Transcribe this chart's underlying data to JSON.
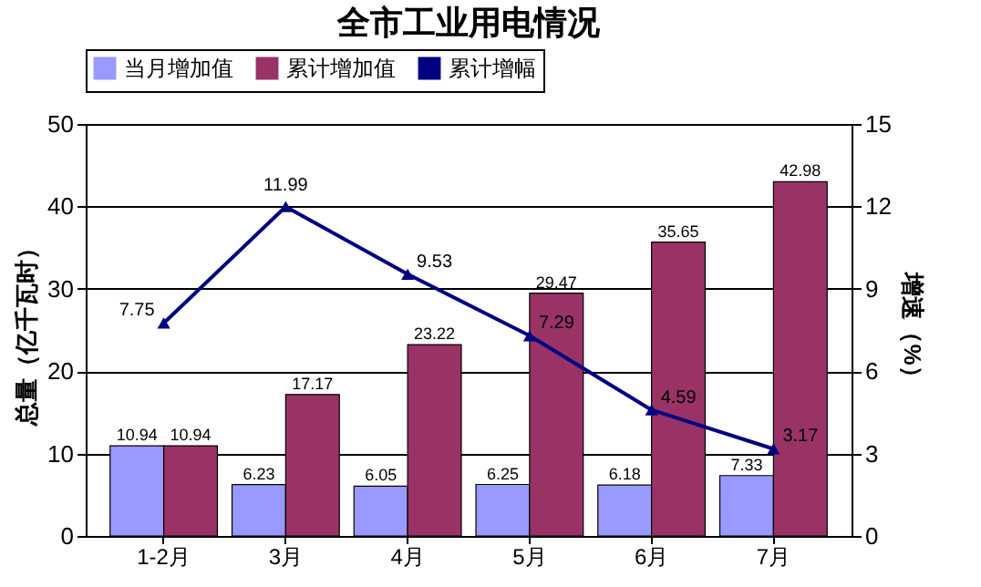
{
  "chart_data": {
    "type": "bar",
    "title": "全市工业用电情况",
    "categories": [
      "1-2月",
      "3月",
      "4月",
      "5月",
      "6月",
      "7月"
    ],
    "series": [
      {
        "name": "当月增加值",
        "color": "#9999ff",
        "values": [
          10.94,
          6.23,
          6.05,
          6.25,
          6.18,
          7.33
        ]
      },
      {
        "name": "累计增加值",
        "color": "#993366",
        "values": [
          10.94,
          17.17,
          23.22,
          29.47,
          35.65,
          42.98
        ]
      },
      {
        "name": "累计增幅",
        "type": "line",
        "axis": "y2",
        "color": "#000080",
        "marker": "triangle",
        "values": [
          7.75,
          11.99,
          9.53,
          7.29,
          4.59,
          3.17
        ]
      }
    ],
    "ylabel": "总量（亿千瓦时）",
    "y2label": "增速（%）",
    "ylim": [
      0,
      50
    ],
    "yticks": [
      0,
      10,
      20,
      30,
      40,
      50
    ],
    "y2lim": [
      0,
      15
    ],
    "y2ticks": [
      0,
      3,
      6,
      9,
      12,
      15
    ],
    "grid": "y",
    "legend": "top",
    "data_labels": true
  }
}
